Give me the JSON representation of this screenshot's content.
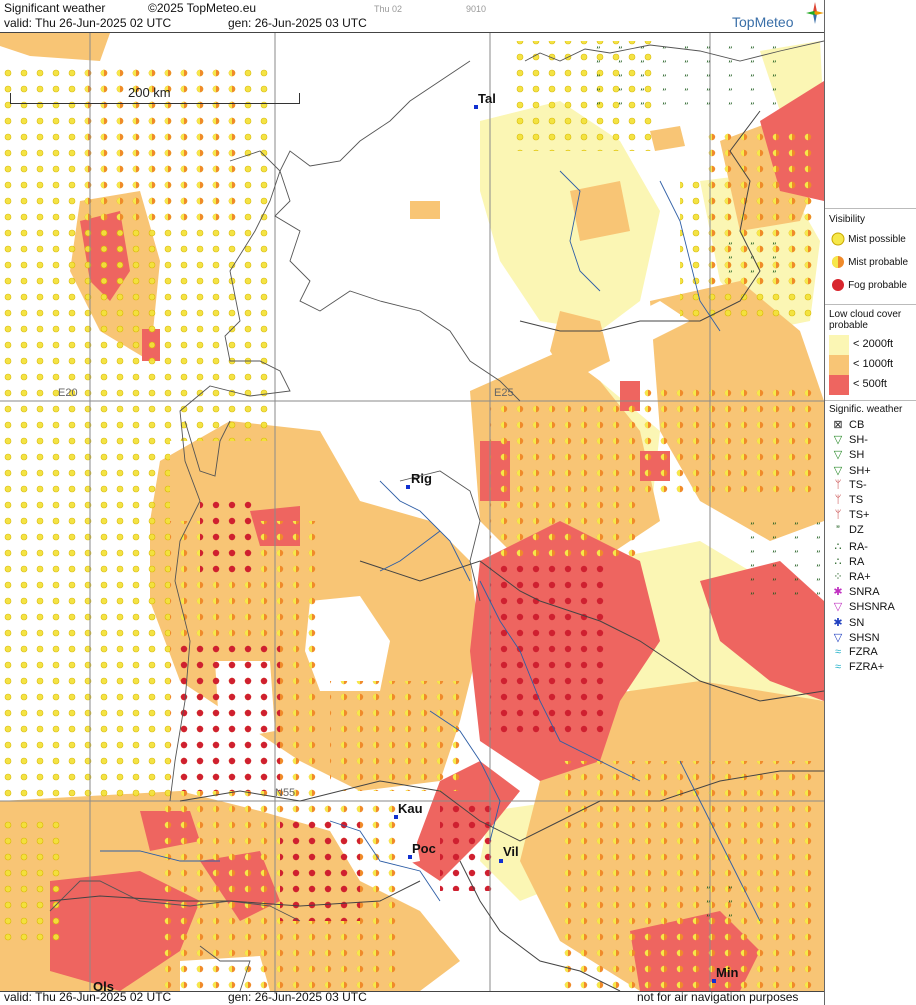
{
  "header": {
    "product": "Significant weather",
    "copyright": "©2025 TopMeteo.eu",
    "valid": "valid:  Thu   26-Jun-2025  02 UTC",
    "gen": "gen: 26-Jun-2025 03 UTC",
    "faint1": "Thu 02",
    "faint2": "9010",
    "brand": "TopMeteo"
  },
  "footer": {
    "valid": "valid:  Thu   26-Jun-2025  02 UTC",
    "gen": "gen: 26-Jun-2025 03 UTC",
    "disclaimer": "not for air navigation purposes"
  },
  "map": {
    "scale_label": "200 km",
    "grid_labels": [
      "E20",
      "E25",
      "N55"
    ],
    "cities": [
      {
        "name": "Tal"
      },
      {
        "name": "Rig"
      },
      {
        "name": "Kau"
      },
      {
        "name": "Poc"
      },
      {
        "name": "Vil"
      },
      {
        "name": "Ols"
      },
      {
        "name": "Min"
      }
    ]
  },
  "legend": {
    "visibility_title": "Visibility",
    "visibility": [
      {
        "label": "Mist possible",
        "color": "#f6e84a"
      },
      {
        "label": "Mist probable",
        "color": "#f08a2a"
      },
      {
        "label": "Fog probable",
        "color": "#d8262e"
      }
    ],
    "cloud_title_1": "Low cloud cover",
    "cloud_title_2": "probable",
    "cloud": [
      {
        "label": "< 2000ft",
        "color": "#fbf6b4"
      },
      {
        "label": "< 1000ft",
        "color": "#f8c575"
      },
      {
        "label": "<   500ft",
        "color": "#ee6560"
      }
    ],
    "wx_title": "Signific. weather",
    "wx": [
      {
        "label": "CB",
        "icon": "cb-icon"
      },
      {
        "label": "SH-",
        "icon": "shower-light-icon"
      },
      {
        "label": "SH",
        "icon": "shower-icon"
      },
      {
        "label": "SH+",
        "icon": "shower-heavy-icon"
      },
      {
        "label": "TS-",
        "icon": "thunder-light-icon"
      },
      {
        "label": "TS",
        "icon": "thunder-icon"
      },
      {
        "label": "TS+",
        "icon": "thunder-heavy-icon"
      },
      {
        "label": "DZ",
        "icon": "drizzle-icon"
      },
      {
        "label": "RA-",
        "icon": "rain-light-icon"
      },
      {
        "label": "RA",
        "icon": "rain-icon"
      },
      {
        "label": "RA+",
        "icon": "rain-heavy-icon"
      },
      {
        "label": "SNRA",
        "icon": "sleet-icon"
      },
      {
        "label": "SHSNRA",
        "icon": "sleet-shower-icon"
      },
      {
        "label": "SN",
        "icon": "snow-icon"
      },
      {
        "label": "SHSN",
        "icon": "snow-shower-icon"
      },
      {
        "label": "FZRA",
        "icon": "freezing-rain-icon"
      },
      {
        "label": "FZRA+",
        "icon": "freezing-rain-heavy-icon"
      }
    ]
  }
}
